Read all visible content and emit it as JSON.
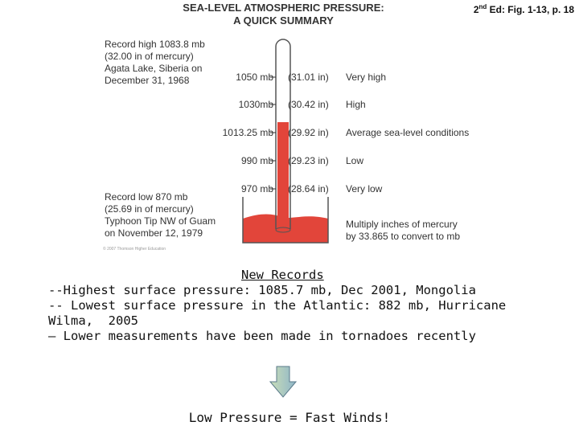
{
  "figure": {
    "title_line1": "SEA-LEVEL ATMOSPHERIC PRESSURE:",
    "title_line2": "A QUICK SUMMARY",
    "reference_prefix": "2",
    "reference_sup": "nd",
    "reference_suffix": " Ed: Fig. 1-13, p. 18",
    "record_high_note": "Record high 1083.8 mb\n(32.00 in of mercury)\nAgata Lake, Siberia on\nDecember 31, 1968",
    "record_low_note": "Record low 870 mb\n(25.69 in of mercury)\nTyphoon Tip NW of Guam\non November 12, 1979",
    "rows": [
      {
        "pressure_mb": "1050 mb",
        "pressure_in": "(31.01 in)",
        "label": "Very high"
      },
      {
        "pressure_mb": "1030mb",
        "pressure_in": "(30.42 in)",
        "label": "High"
      },
      {
        "pressure_mb": "1013.25 mb",
        "pressure_in": "(29.92 in)",
        "label": "Average sea-level conditions"
      },
      {
        "pressure_mb": "990 mb",
        "pressure_in": "(29.23 in)",
        "label": "Low"
      },
      {
        "pressure_mb": "970 mb",
        "pressure_in": "(28.64 in)",
        "label": "Very low"
      }
    ],
    "conversion_note": "Multiply inches of mercury\nby 33.865 to convert to mb",
    "copyright": "© 2007 Thomson Higher Education",
    "colors": {
      "mercury": "#e2453a",
      "glass": "#555555"
    }
  },
  "records": {
    "heading": "New Records",
    "lines": [
      "--Highest surface pressure: 1085.7 mb, Dec 2001, Mongolia",
      "-- Lowest surface pressure in the Atlantic: 882 mb, Hurricane Wilma,  2005",
      "– Lower measurements have been made in tornadoes recently"
    ]
  },
  "conclusion": "Low Pressure = Fast Winds!"
}
